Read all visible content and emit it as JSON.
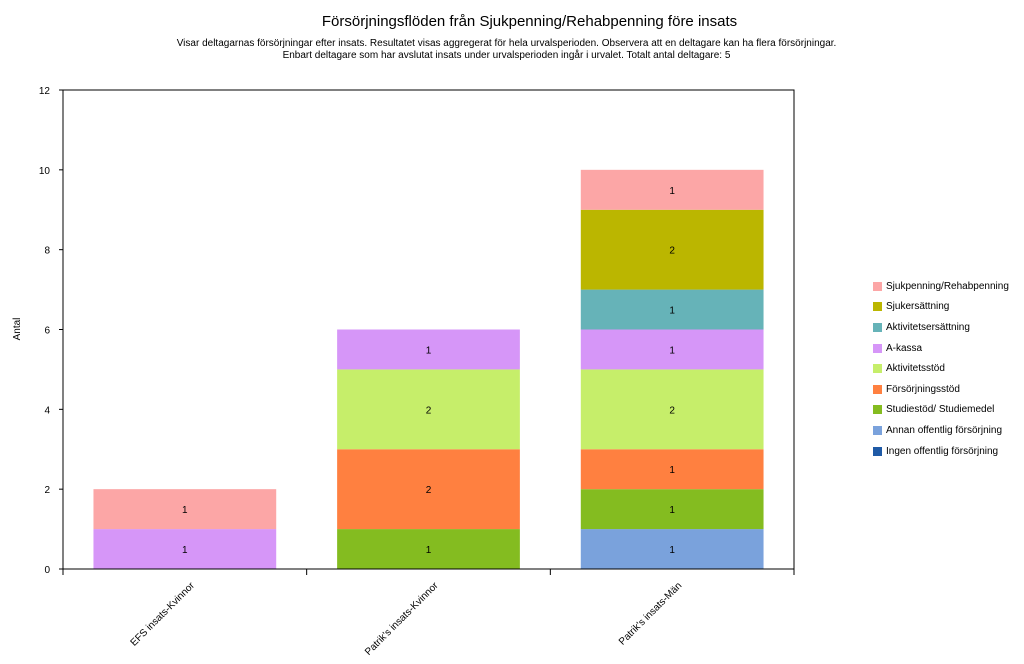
{
  "chart_data": {
    "type": "bar",
    "stacked": true,
    "title": "Försörjningsflöden från Sjukpenning/Rehabpenning före insats",
    "subtitle_lines": [
      "Visar deltagarnas försörjningar efter insats. Resultatet visas aggregerat för hela urvalsperioden. Observera att en deltagare kan ha flera försörjningar.",
      "Enbart deltagare som har avslutat insats under urvalsperioden ingår i urvalet. Totalt antal deltagare: 5"
    ],
    "ylabel": "Antal",
    "xlabel": "",
    "ylim": [
      0,
      12
    ],
    "yticks": [
      0,
      2,
      4,
      6,
      8,
      10,
      12
    ],
    "grid": false,
    "legend_position": "right",
    "categories": [
      "EFS insats-Kvinnor",
      "Patrik's insats-Kvinnor",
      "Patrik's insats-Män"
    ],
    "series": [
      {
        "name": "Ingen offentlig försörjning",
        "color": "#1f5aa6",
        "values": [
          0,
          0,
          0
        ]
      },
      {
        "name": "Annan offentlig försörjning",
        "color": "#7aa2dc",
        "values": [
          0,
          0,
          1
        ]
      },
      {
        "name": "Studiestöd/ Studiemedel",
        "color": "#84bc20",
        "values": [
          0,
          1,
          1
        ]
      },
      {
        "name": "Försörjningsstöd",
        "color": "#ff8040",
        "values": [
          0,
          2,
          1
        ]
      },
      {
        "name": "Aktivitetsstöd",
        "color": "#c6ee6a",
        "values": [
          0,
          2,
          2
        ]
      },
      {
        "name": "A-kassa",
        "color": "#d696f8",
        "values": [
          1,
          1,
          1
        ]
      },
      {
        "name": "Aktivitetsersättning",
        "color": "#66b3b8",
        "values": [
          0,
          0,
          1
        ]
      },
      {
        "name": "Sjukersättning",
        "color": "#bbb600",
        "values": [
          0,
          0,
          2
        ]
      },
      {
        "name": "Sjukpenning/Rehabpenning",
        "color": "#fca6a6",
        "values": [
          1,
          0,
          1
        ]
      }
    ],
    "legend_order": [
      "Sjukpenning/Rehabpenning",
      "Sjukersättning",
      "Aktivitetsersättning",
      "A-kassa",
      "Aktivitetsstöd",
      "Försörjningsstöd",
      "Studiestöd/ Studiemedel",
      "Annan offentlig försörjning",
      "Ingen offentlig försörjning"
    ]
  }
}
